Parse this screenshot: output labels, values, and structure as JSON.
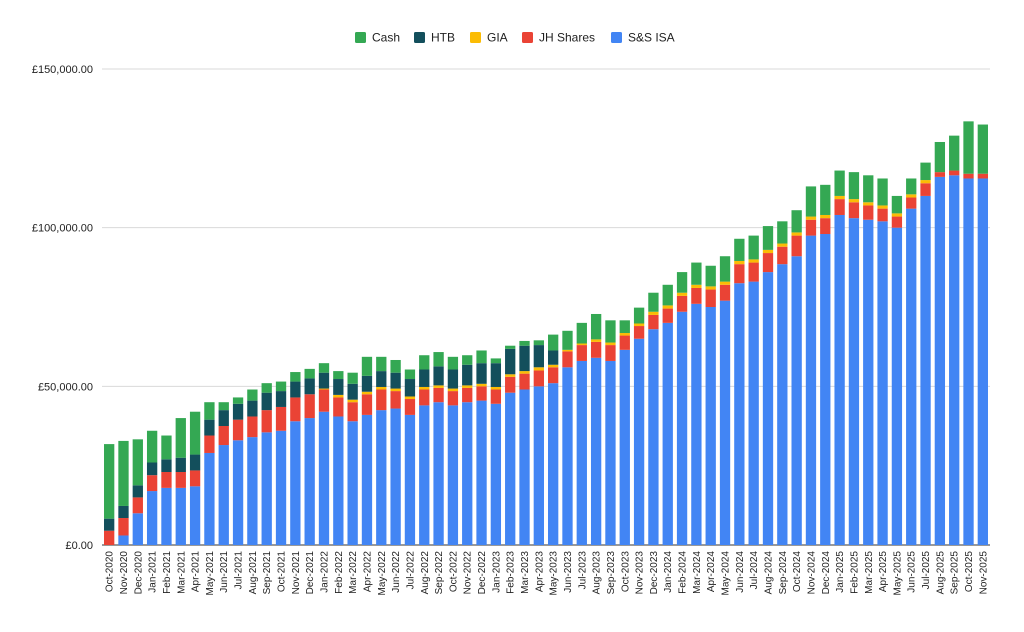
{
  "chart_data": {
    "type": "bar",
    "stacked": true,
    "title": "",
    "xlabel": "",
    "ylabel": "",
    "ylim": [
      0,
      150000
    ],
    "grid": true,
    "legend_position": "top-center",
    "y_ticks": [
      "£0.00",
      "£50,000.00",
      "£100,000.00",
      "£150,000.00"
    ],
    "y_tick_values": [
      0,
      50000,
      100000,
      150000
    ],
    "categories": [
      "Oct-2020",
      "Nov-2020",
      "Dec-2020",
      "Jan-2021",
      "Feb-2021",
      "Mar-2021",
      "Apr-2021",
      "May-2021",
      "Jun-2021",
      "Jul-2021",
      "Aug-2021",
      "Sep-2021",
      "Oct-2021",
      "Nov-2021",
      "Dec-2021",
      "Jan-2022",
      "Feb-2022",
      "Mar-2022",
      "Apr-2022",
      "May-2022",
      "Jun-2022",
      "Jul-2022",
      "Aug-2022",
      "Sep-2022",
      "Oct-2022",
      "Nov-2022",
      "Dec-2022",
      "Jan-2023",
      "Feb-2023",
      "Mar-2023",
      "Apr-2023",
      "May-2023",
      "Jun-2023",
      "Jul-2023",
      "Aug-2023",
      "Sep-2023",
      "Oct-2023",
      "Nov-2023",
      "Dec-2023",
      "Jan-2024",
      "Feb-2024",
      "Mar-2024",
      "Apr-2024",
      "May-2024",
      "Jun-2024",
      "Jul-2024",
      "Aug-2024",
      "Sep-2024",
      "Oct-2024",
      "Nov-2024",
      "Dec-2024",
      "Jan-2025",
      "Feb-2025",
      "Mar-2025",
      "Apr-2025",
      "May-2025",
      "Jun-2025",
      "Jul-2025",
      "Aug-2025",
      "Sep-2025",
      "Oct-2025",
      "Nov-2025"
    ],
    "series": [
      {
        "name": "S&S ISA",
        "color": "#4285f4",
        "values": [
          0,
          3000,
          10000,
          17000,
          18000,
          18000,
          18500,
          29000,
          31500,
          33000,
          34000,
          35500,
          36000,
          39000,
          40000,
          42000,
          40500,
          39000,
          41000,
          42500,
          43000,
          41000,
          44000,
          45000,
          44000,
          45000,
          45500,
          44500,
          48000,
          49000,
          50000,
          51000,
          56000,
          58000,
          59000,
          58000,
          61500,
          65000,
          68000,
          70000,
          73500,
          76000,
          75000,
          77000,
          82500,
          83000,
          86000,
          88500,
          91000,
          97500,
          98000,
          104000,
          103000,
          102500,
          102000,
          100000,
          106000,
          110000,
          116000,
          116500,
          115500,
          115500
        ]
      },
      {
        "name": "JH Shares",
        "color": "#ea4335",
        "values": [
          4500,
          5500,
          5000,
          5000,
          5000,
          5000,
          5000,
          5500,
          6000,
          6500,
          6500,
          7000,
          7500,
          7500,
          7500,
          7000,
          6000,
          6000,
          6500,
          6500,
          5500,
          5000,
          5000,
          4500,
          4500,
          4500,
          4500,
          4500,
          5000,
          5000,
          5000,
          5000,
          5000,
          5000,
          5000,
          5000,
          4500,
          4000,
          4500,
          4500,
          5000,
          5000,
          5500,
          5000,
          6000,
          6000,
          6000,
          5500,
          6500,
          5000,
          5000,
          5000,
          5000,
          4500,
          4000,
          3500,
          3500,
          4000,
          1500,
          1500,
          1500,
          1500
        ]
      },
      {
        "name": "GIA",
        "color": "#fbbc04",
        "values": [
          0,
          0,
          0,
          0,
          0,
          0,
          0,
          0,
          0,
          0,
          0,
          0,
          0,
          0,
          0,
          300,
          800,
          800,
          800,
          800,
          800,
          800,
          800,
          800,
          800,
          800,
          800,
          800,
          800,
          800,
          1000,
          800,
          500,
          500,
          800,
          800,
          800,
          800,
          1000,
          1000,
          1000,
          1000,
          1000,
          1000,
          1000,
          1000,
          1000,
          1000,
          1000,
          1000,
          1000,
          1000,
          1000,
          1000,
          1000,
          1000,
          1000,
          1000,
          0,
          0,
          0,
          0
        ]
      },
      {
        "name": "HTB",
        "color": "#134f5c",
        "values": [
          3800,
          3800,
          3800,
          4000,
          4000,
          4500,
          5000,
          5000,
          5000,
          5000,
          5000,
          5500,
          5000,
          5000,
          5000,
          5000,
          5000,
          5000,
          5000,
          5000,
          5000,
          5500,
          5500,
          6000,
          6000,
          6500,
          6500,
          7500,
          8000,
          8000,
          7000,
          4500,
          0,
          0,
          0,
          0,
          0,
          0,
          0,
          0,
          0,
          0,
          0,
          0,
          0,
          0,
          0,
          0,
          0,
          0,
          0,
          0,
          0,
          0,
          0,
          0,
          0,
          0,
          0,
          0,
          0,
          0
        ]
      },
      {
        "name": "Cash",
        "color": "#34a853",
        "values": [
          23500,
          20500,
          14500,
          10000,
          7500,
          12500,
          13500,
          5500,
          2500,
          2000,
          3500,
          3000,
          3000,
          3000,
          3000,
          3000,
          2500,
          3500,
          6000,
          4500,
          4000,
          3000,
          4500,
          4500,
          4000,
          3000,
          4000,
          1500,
          1000,
          1500,
          1500,
          5000,
          6000,
          6500,
          8000,
          7000,
          4000,
          5000,
          6000,
          6500,
          6500,
          7000,
          6500,
          8000,
          7000,
          7500,
          7500,
          7000,
          7000,
          9500,
          9500,
          8000,
          8500,
          8500,
          8500,
          5500,
          5000,
          5500,
          9500,
          11000,
          16500,
          15500
        ]
      }
    ]
  }
}
